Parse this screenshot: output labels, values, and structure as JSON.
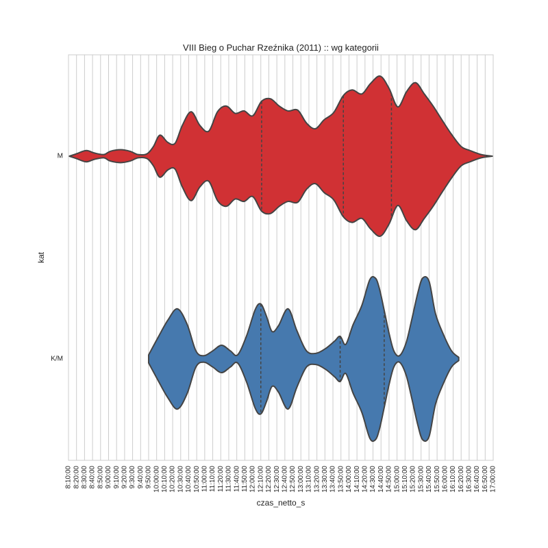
{
  "chart_data": {
    "type": "violin",
    "title": "VIII Bieg o Puchar Rzeźnika (2011) :: wg kategorii",
    "xlabel": "czas_netto_s",
    "ylabel": "kat",
    "orientation": "horizontal",
    "x_unit": "minutes",
    "xlim": [
      490,
      1020
    ],
    "x_ticks": [
      490,
      500,
      510,
      520,
      530,
      540,
      550,
      560,
      570,
      580,
      590,
      600,
      610,
      620,
      630,
      640,
      650,
      660,
      670,
      680,
      690,
      700,
      710,
      720,
      730,
      740,
      750,
      760,
      770,
      780,
      790,
      800,
      810,
      820,
      830,
      840,
      850,
      860,
      870,
      880,
      890,
      900,
      910,
      920,
      930,
      940,
      950,
      960,
      970,
      980,
      990,
      1000,
      1010,
      1020
    ],
    "x_tick_labels": [
      "8:10:00",
      "8:20:00",
      "8:30:00",
      "8:40:00",
      "8:50:00",
      "9:00:00",
      "9:10:00",
      "9:20:00",
      "9:30:00",
      "9:40:00",
      "9:50:00",
      "10:00:00",
      "10:10:00",
      "10:20:00",
      "10:30:00",
      "10:40:00",
      "10:50:00",
      "11:00:00",
      "11:10:00",
      "11:20:00",
      "11:30:00",
      "11:40:00",
      "11:50:00",
      "12:00:00",
      "12:10:00",
      "12:20:00",
      "12:30:00",
      "12:40:00",
      "12:50:00",
      "13:00:00",
      "13:10:00",
      "13:20:00",
      "13:30:00",
      "13:40:00",
      "13:50:00",
      "14:00:00",
      "14:10:00",
      "14:20:00",
      "14:30:00",
      "14:40:00",
      "14:50:00",
      "15:00:00",
      "15:10:00",
      "15:20:00",
      "15:30:00",
      "15:40:00",
      "15:50:00",
      "16:00:00",
      "16:10:00",
      "16:20:00",
      "16:30:00",
      "16:40:00",
      "16:50:00",
      "17:00:00"
    ],
    "grid": true,
    "series": [
      {
        "name": "M",
        "color": "#d03134",
        "quartiles": [
          731,
          833,
          893
        ],
        "density": [
          [
            491,
            0.0
          ],
          [
            500,
            0.03
          ],
          [
            512,
            0.07
          ],
          [
            522,
            0.04
          ],
          [
            534,
            0.02
          ],
          [
            542,
            0.06
          ],
          [
            555,
            0.08
          ],
          [
            567,
            0.06
          ],
          [
            577,
            0.02
          ],
          [
            588,
            0.03
          ],
          [
            596,
            0.12
          ],
          [
            604,
            0.26
          ],
          [
            614,
            0.17
          ],
          [
            623,
            0.16
          ],
          [
            632,
            0.38
          ],
          [
            643,
            0.55
          ],
          [
            654,
            0.38
          ],
          [
            665,
            0.31
          ],
          [
            676,
            0.55
          ],
          [
            687,
            0.62
          ],
          [
            698,
            0.53
          ],
          [
            709,
            0.56
          ],
          [
            720,
            0.5
          ],
          [
            731,
            0.68
          ],
          [
            742,
            0.71
          ],
          [
            753,
            0.62
          ],
          [
            764,
            0.56
          ],
          [
            776,
            0.57
          ],
          [
            787,
            0.41
          ],
          [
            798,
            0.34
          ],
          [
            809,
            0.45
          ],
          [
            821,
            0.54
          ],
          [
            833,
            0.75
          ],
          [
            844,
            0.82
          ],
          [
            856,
            0.77
          ],
          [
            867,
            0.9
          ],
          [
            879,
            0.99
          ],
          [
            890,
            0.84
          ],
          [
            901,
            0.61
          ],
          [
            912,
            0.8
          ],
          [
            923,
            0.91
          ],
          [
            934,
            0.77
          ],
          [
            945,
            0.62
          ],
          [
            956,
            0.45
          ],
          [
            968,
            0.27
          ],
          [
            980,
            0.12
          ],
          [
            991,
            0.07
          ],
          [
            1005,
            0.02
          ],
          [
            1019,
            0.0
          ]
        ]
      },
      {
        "name": "K/M",
        "color": "#4679ae",
        "quartiles": [
          730,
          829,
          884
        ],
        "density": [
          [
            590,
            0.05
          ],
          [
            602,
            0.27
          ],
          [
            614,
            0.48
          ],
          [
            626,
            0.62
          ],
          [
            638,
            0.43
          ],
          [
            649,
            0.1
          ],
          [
            659,
            0.04
          ],
          [
            670,
            0.1
          ],
          [
            681,
            0.17
          ],
          [
            692,
            0.1
          ],
          [
            701,
            0.05
          ],
          [
            712,
            0.28
          ],
          [
            723,
            0.61
          ],
          [
            730,
            0.68
          ],
          [
            737,
            0.53
          ],
          [
            744,
            0.34
          ],
          [
            752,
            0.41
          ],
          [
            764,
            0.62
          ],
          [
            775,
            0.35
          ],
          [
            787,
            0.1
          ],
          [
            799,
            0.07
          ],
          [
            811,
            0.13
          ],
          [
            822,
            0.22
          ],
          [
            829,
            0.28
          ],
          [
            836,
            0.18
          ],
          [
            845,
            0.42
          ],
          [
            856,
            0.66
          ],
          [
            866,
            0.98
          ],
          [
            873,
            1.0
          ],
          [
            878,
            0.87
          ],
          [
            884,
            0.6
          ],
          [
            890,
            0.32
          ],
          [
            896,
            0.1
          ],
          [
            903,
            0.04
          ],
          [
            911,
            0.19
          ],
          [
            918,
            0.47
          ],
          [
            926,
            0.82
          ],
          [
            932,
            1.0
          ],
          [
            940,
            0.96
          ],
          [
            948,
            0.56
          ],
          [
            958,
            0.3
          ],
          [
            968,
            0.1
          ],
          [
            977,
            0.02
          ]
        ]
      }
    ]
  }
}
